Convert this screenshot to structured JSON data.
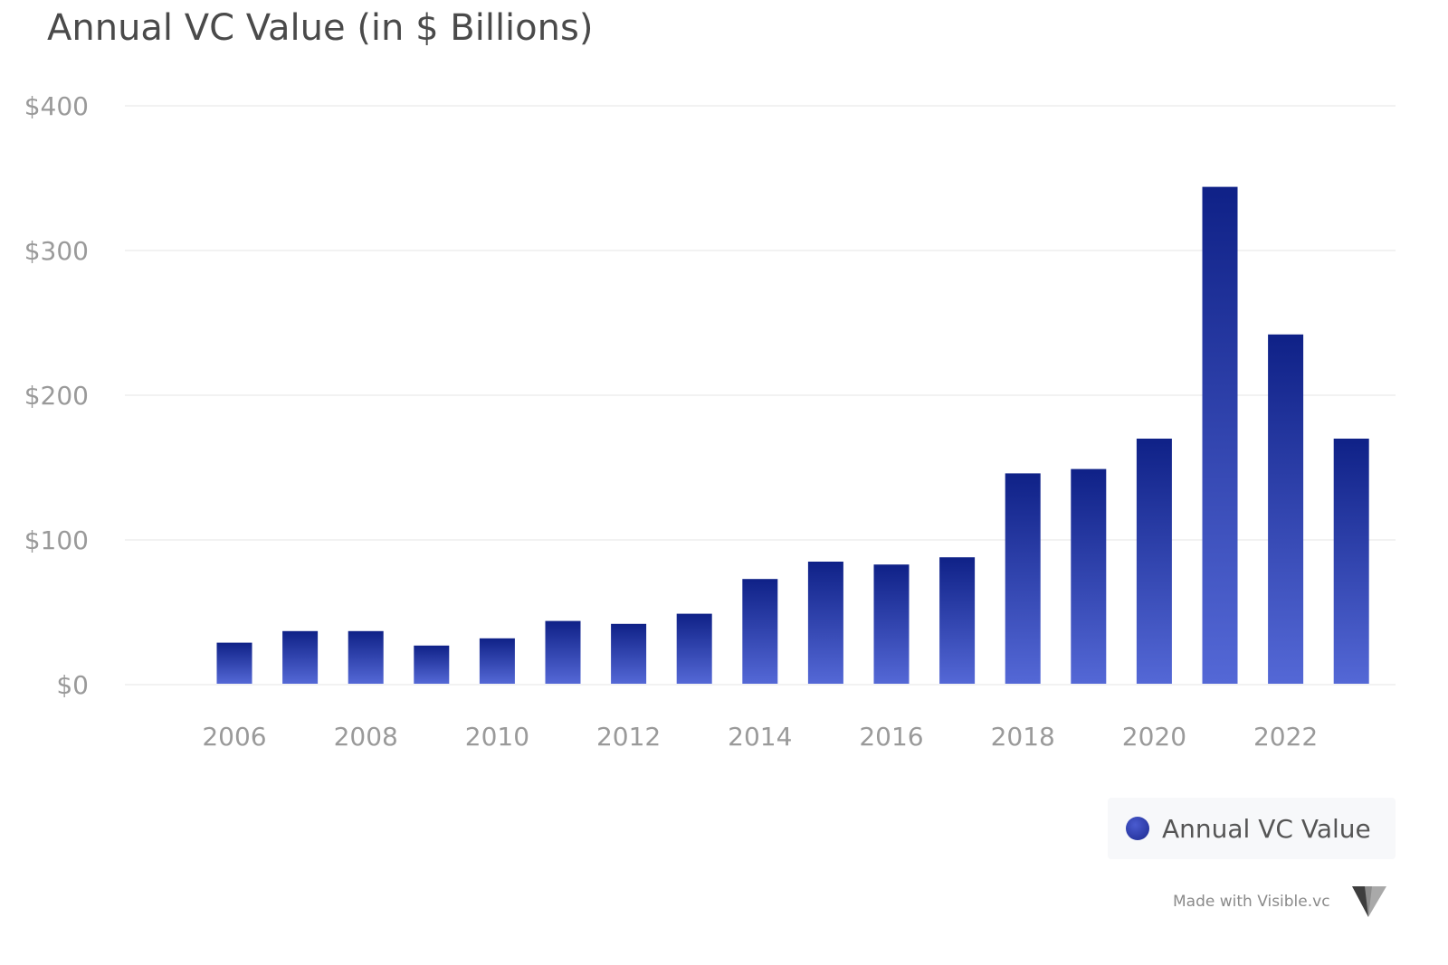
{
  "chart_data": {
    "type": "bar",
    "title": "Annual VC Value (in $ Billions)",
    "x": [
      2006,
      2007,
      2008,
      2009,
      2010,
      2011,
      2012,
      2013,
      2014,
      2015,
      2016,
      2017,
      2018,
      2019,
      2020,
      2021,
      2022,
      2023
    ],
    "x_tick_labels": [
      "2006",
      "2008",
      "2010",
      "2012",
      "2014",
      "2016",
      "2018",
      "2020",
      "2022"
    ],
    "x_tick_values": [
      2006,
      2008,
      2010,
      2012,
      2014,
      2016,
      2018,
      2020,
      2022
    ],
    "series": [
      {
        "name": "Annual VC Value",
        "values": [
          29,
          37,
          37,
          27,
          32,
          44,
          42,
          49,
          73,
          85,
          83,
          88,
          146,
          149,
          170,
          344,
          242,
          170
        ]
      }
    ],
    "y_ticks": [
      0,
      100,
      200,
      300,
      400
    ],
    "y_tick_labels": [
      "$0",
      "$100",
      "$200",
      "$300",
      "$400"
    ],
    "ylim": [
      0,
      400
    ],
    "xlabel": "",
    "ylabel": "",
    "grid": true,
    "legend_position": "bottom-right",
    "colors": {
      "bar_top": "#0f2187",
      "bar_bottom": "#5468d6",
      "grid": "#eeeeee",
      "tick_text": "#9a9a9a"
    }
  },
  "legend": {
    "label": "Annual VC Value"
  },
  "watermark": "Made with Visible.vc"
}
